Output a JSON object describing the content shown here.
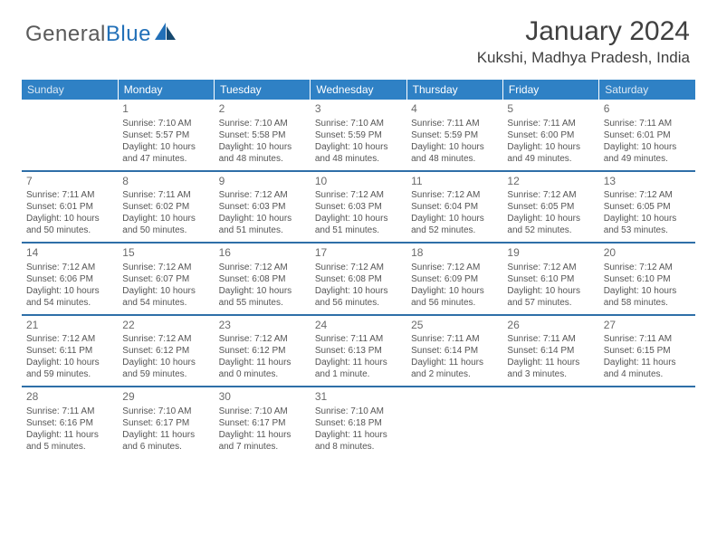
{
  "brand": {
    "word1": "General",
    "word2": "Blue"
  },
  "title": "January 2024",
  "location": "Kukshi, Madhya Pradesh, India",
  "header_bg": "#2f81c5",
  "dow": [
    "Sunday",
    "Monday",
    "Tuesday",
    "Wednesday",
    "Thursday",
    "Friday",
    "Saturday"
  ],
  "weeks": [
    [
      null,
      {
        "n": "1",
        "sr": "7:10 AM",
        "ss": "5:57 PM",
        "dl": "10 hours and 47 minutes."
      },
      {
        "n": "2",
        "sr": "7:10 AM",
        "ss": "5:58 PM",
        "dl": "10 hours and 48 minutes."
      },
      {
        "n": "3",
        "sr": "7:10 AM",
        "ss": "5:59 PM",
        "dl": "10 hours and 48 minutes."
      },
      {
        "n": "4",
        "sr": "7:11 AM",
        "ss": "5:59 PM",
        "dl": "10 hours and 48 minutes."
      },
      {
        "n": "5",
        "sr": "7:11 AM",
        "ss": "6:00 PM",
        "dl": "10 hours and 49 minutes."
      },
      {
        "n": "6",
        "sr": "7:11 AM",
        "ss": "6:01 PM",
        "dl": "10 hours and 49 minutes."
      }
    ],
    [
      {
        "n": "7",
        "sr": "7:11 AM",
        "ss": "6:01 PM",
        "dl": "10 hours and 50 minutes."
      },
      {
        "n": "8",
        "sr": "7:11 AM",
        "ss": "6:02 PM",
        "dl": "10 hours and 50 minutes."
      },
      {
        "n": "9",
        "sr": "7:12 AM",
        "ss": "6:03 PM",
        "dl": "10 hours and 51 minutes."
      },
      {
        "n": "10",
        "sr": "7:12 AM",
        "ss": "6:03 PM",
        "dl": "10 hours and 51 minutes."
      },
      {
        "n": "11",
        "sr": "7:12 AM",
        "ss": "6:04 PM",
        "dl": "10 hours and 52 minutes."
      },
      {
        "n": "12",
        "sr": "7:12 AM",
        "ss": "6:05 PM",
        "dl": "10 hours and 52 minutes."
      },
      {
        "n": "13",
        "sr": "7:12 AM",
        "ss": "6:05 PM",
        "dl": "10 hours and 53 minutes."
      }
    ],
    [
      {
        "n": "14",
        "sr": "7:12 AM",
        "ss": "6:06 PM",
        "dl": "10 hours and 54 minutes."
      },
      {
        "n": "15",
        "sr": "7:12 AM",
        "ss": "6:07 PM",
        "dl": "10 hours and 54 minutes."
      },
      {
        "n": "16",
        "sr": "7:12 AM",
        "ss": "6:08 PM",
        "dl": "10 hours and 55 minutes."
      },
      {
        "n": "17",
        "sr": "7:12 AM",
        "ss": "6:08 PM",
        "dl": "10 hours and 56 minutes."
      },
      {
        "n": "18",
        "sr": "7:12 AM",
        "ss": "6:09 PM",
        "dl": "10 hours and 56 minutes."
      },
      {
        "n": "19",
        "sr": "7:12 AM",
        "ss": "6:10 PM",
        "dl": "10 hours and 57 minutes."
      },
      {
        "n": "20",
        "sr": "7:12 AM",
        "ss": "6:10 PM",
        "dl": "10 hours and 58 minutes."
      }
    ],
    [
      {
        "n": "21",
        "sr": "7:12 AM",
        "ss": "6:11 PM",
        "dl": "10 hours and 59 minutes."
      },
      {
        "n": "22",
        "sr": "7:12 AM",
        "ss": "6:12 PM",
        "dl": "10 hours and 59 minutes."
      },
      {
        "n": "23",
        "sr": "7:12 AM",
        "ss": "6:12 PM",
        "dl": "11 hours and 0 minutes."
      },
      {
        "n": "24",
        "sr": "7:11 AM",
        "ss": "6:13 PM",
        "dl": "11 hours and 1 minute."
      },
      {
        "n": "25",
        "sr": "7:11 AM",
        "ss": "6:14 PM",
        "dl": "11 hours and 2 minutes."
      },
      {
        "n": "26",
        "sr": "7:11 AM",
        "ss": "6:14 PM",
        "dl": "11 hours and 3 minutes."
      },
      {
        "n": "27",
        "sr": "7:11 AM",
        "ss": "6:15 PM",
        "dl": "11 hours and 4 minutes."
      }
    ],
    [
      {
        "n": "28",
        "sr": "7:11 AM",
        "ss": "6:16 PM",
        "dl": "11 hours and 5 minutes."
      },
      {
        "n": "29",
        "sr": "7:10 AM",
        "ss": "6:17 PM",
        "dl": "11 hours and 6 minutes."
      },
      {
        "n": "30",
        "sr": "7:10 AM",
        "ss": "6:17 PM",
        "dl": "11 hours and 7 minutes."
      },
      {
        "n": "31",
        "sr": "7:10 AM",
        "ss": "6:18 PM",
        "dl": "11 hours and 8 minutes."
      },
      null,
      null,
      null
    ]
  ],
  "labels": {
    "sunrise": "Sunrise:",
    "sunset": "Sunset:",
    "daylight": "Daylight:"
  }
}
